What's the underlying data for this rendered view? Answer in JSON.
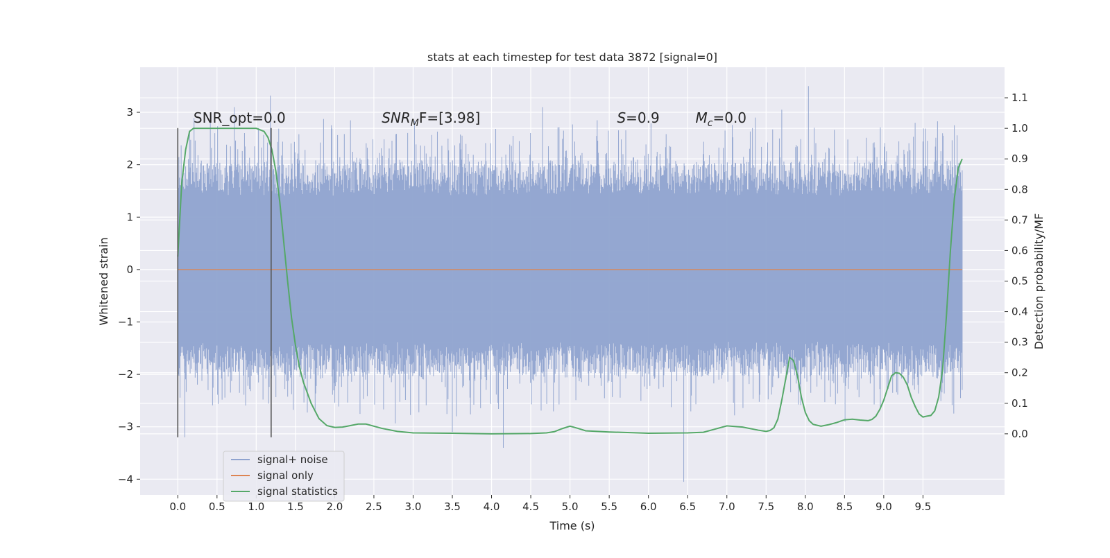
{
  "chart_data": {
    "type": "line",
    "title": "stats at each timestep for test data 3872 [signal=0]",
    "xlabel": "Time (s)",
    "ylabel_left": "Whitened strain",
    "ylabel_right": "Detection probability/MF",
    "xlim": [
      -0.48,
      10.54
    ],
    "ylim_left": [
      -4.3,
      3.86
    ],
    "ylim_right": [
      -0.2,
      1.2
    ],
    "xticks": [
      0.0,
      0.5,
      1.0,
      1.5,
      2.0,
      2.5,
      3.0,
      3.5,
      4.0,
      4.5,
      5.0,
      5.5,
      6.0,
      6.5,
      7.0,
      7.5,
      8.0,
      8.5,
      9.0,
      9.5
    ],
    "xtick_labels": [
      "0.0",
      "0.5",
      "1.0",
      "1.5",
      "2.0",
      "2.5",
      "3.0",
      "3.5",
      "4.0",
      "4.5",
      "5.0",
      "5.5",
      "6.0",
      "6.5",
      "7.0",
      "7.5",
      "8.0",
      "8.5",
      "9.0",
      "9.5"
    ],
    "yticks_left": [
      3,
      2,
      1,
      0,
      -1,
      -2,
      -3,
      -4
    ],
    "ytick_labels_left": [
      "3",
      "2",
      "1",
      "0",
      "−1",
      "−2",
      "−3",
      "−4"
    ],
    "yticks_right": [
      1.1,
      1.0,
      0.9,
      0.8,
      0.7,
      0.6,
      0.5,
      0.4,
      0.3,
      0.2,
      0.1,
      0.0
    ],
    "ytick_labels_right": [
      "1.1",
      "1.0",
      "0.9",
      "0.8",
      "0.7",
      "0.6",
      "0.5",
      "0.4",
      "0.3",
      "0.2",
      "0.1",
      "0.0"
    ],
    "grid": true,
    "legend_position": "lower-left",
    "series": [
      {
        "name": "signal+ noise",
        "color": "#8fa3cf",
        "kind": "noise",
        "x_range": [
          0.0,
          10.0
        ],
        "y_extent_typical": [
          -1.5,
          1.5
        ],
        "y_peaks": [
          [
            0.09,
            -3.2
          ],
          [
            0.72,
            3.1
          ],
          [
            1.18,
            3.32
          ],
          [
            3.5,
            -3.1
          ],
          [
            4.15,
            -3.4
          ],
          [
            4.65,
            3.1
          ],
          [
            6.45,
            -4.05
          ],
          [
            7.7,
            3.05
          ],
          [
            8.04,
            3.5
          ],
          [
            9.4,
            2.8
          ],
          [
            9.75,
            2.6
          ]
        ]
      },
      {
        "name": "signal only",
        "color": "#dd8452",
        "kind": "flat",
        "x": [
          0.0,
          10.0
        ],
        "y": [
          0.0,
          0.0
        ]
      },
      {
        "name": "signal statistics",
        "color": "#55a868",
        "kind": "line",
        "axis": "right",
        "x": [
          0.0,
          0.05,
          0.1,
          0.15,
          0.2,
          0.3,
          0.5,
          0.7,
          0.9,
          1.0,
          1.1,
          1.15,
          1.2,
          1.25,
          1.3,
          1.35,
          1.4,
          1.45,
          1.5,
          1.55,
          1.6,
          1.7,
          1.8,
          1.9,
          2.0,
          2.1,
          2.2,
          2.3,
          2.4,
          2.6,
          2.8,
          3.0,
          3.5,
          4.0,
          4.5,
          4.7,
          4.8,
          4.9,
          5.0,
          5.1,
          5.2,
          5.5,
          6.0,
          6.5,
          6.7,
          6.8,
          7.0,
          7.2,
          7.4,
          7.5,
          7.55,
          7.6,
          7.65,
          7.7,
          7.75,
          7.8,
          7.85,
          7.9,
          7.95,
          8.0,
          8.05,
          8.1,
          8.2,
          8.3,
          8.4,
          8.5,
          8.6,
          8.7,
          8.8,
          8.85,
          8.9,
          8.95,
          9.0,
          9.05,
          9.1,
          9.15,
          9.2,
          9.25,
          9.3,
          9.35,
          9.4,
          9.45,
          9.5,
          9.55,
          9.6,
          9.65,
          9.7,
          9.75,
          9.8,
          9.85,
          9.9,
          9.95,
          10.0
        ],
        "y": [
          0.58,
          0.82,
          0.93,
          0.99,
          1.0,
          1.0,
          1.0,
          1.0,
          1.0,
          1.0,
          0.99,
          0.97,
          0.93,
          0.86,
          0.76,
          0.63,
          0.5,
          0.38,
          0.29,
          0.22,
          0.17,
          0.1,
          0.05,
          0.027,
          0.021,
          0.022,
          0.027,
          0.032,
          0.032,
          0.018,
          0.008,
          0.003,
          0.002,
          0.0,
          0.001,
          0.003,
          0.007,
          0.017,
          0.025,
          0.018,
          0.01,
          0.006,
          0.002,
          0.003,
          0.005,
          0.012,
          0.026,
          0.022,
          0.012,
          0.008,
          0.011,
          0.02,
          0.048,
          0.11,
          0.18,
          0.25,
          0.24,
          0.19,
          0.12,
          0.07,
          0.043,
          0.031,
          0.025,
          0.03,
          0.037,
          0.046,
          0.048,
          0.045,
          0.043,
          0.047,
          0.058,
          0.08,
          0.11,
          0.15,
          0.19,
          0.2,
          0.198,
          0.185,
          0.16,
          0.12,
          0.09,
          0.065,
          0.055,
          0.058,
          0.06,
          0.075,
          0.12,
          0.21,
          0.39,
          0.6,
          0.77,
          0.87,
          0.9
        ]
      }
    ],
    "vertical_markers": [
      {
        "x": 0.0,
        "y_range": [
          -3.2,
          2.7
        ],
        "color": "#555555"
      },
      {
        "x": 1.19,
        "y_range": [
          -3.2,
          2.7
        ],
        "color": "#555555"
      }
    ],
    "annotations": [
      {
        "text": "SNR_opt=0.0",
        "x": 0.2,
        "y": 2.8
      },
      {
        "main": "SNR",
        "sub": "M",
        "tail": "F=[3.98]",
        "x": 2.6,
        "y": 2.8
      },
      {
        "main": "S",
        "sub": "",
        "tail": "=0.9",
        "x": 5.6,
        "y": 2.8
      },
      {
        "main": "M",
        "sub": "c",
        "tail": "=0.0",
        "x": 6.6,
        "y": 2.8
      }
    ]
  },
  "legend": {
    "items": [
      {
        "label": "signal+ noise",
        "color": "#8fa3cf"
      },
      {
        "label": "signal only",
        "color": "#dd8452"
      },
      {
        "label": "signal statistics",
        "color": "#55a868"
      }
    ]
  }
}
